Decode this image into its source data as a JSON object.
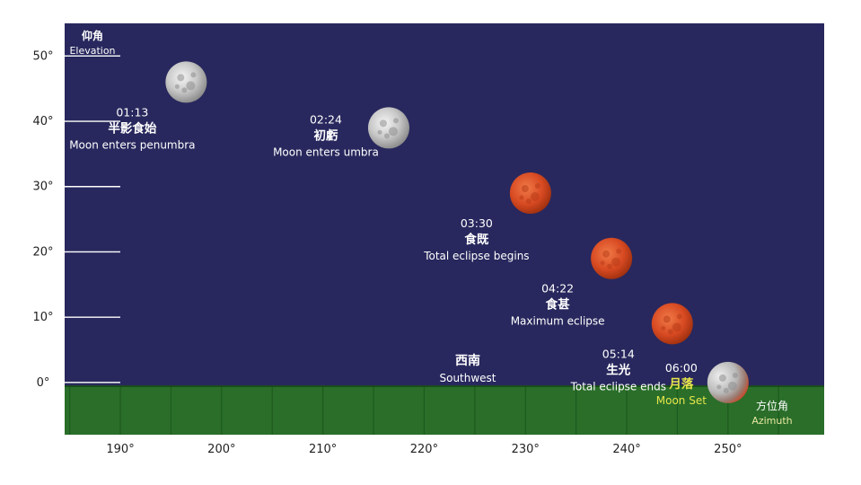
{
  "chart_data": {
    "type": "scatter",
    "title": "",
    "y_axis": {
      "label_cn": "仰角",
      "label_en": "Elevation",
      "ticks": [
        "0°",
        "10°",
        "20°",
        "30°",
        "40°",
        "50°"
      ],
      "tick_values": [
        0,
        10,
        20,
        30,
        40,
        50
      ],
      "ylim": [
        -8,
        55
      ]
    },
    "x_axis": {
      "label_cn": "方位角",
      "label_en": "Azimuth",
      "ticks": [
        "190°",
        "200°",
        "210°",
        "220°",
        "230°",
        "240°",
        "250°"
      ],
      "tick_values": [
        190,
        200,
        210,
        220,
        230,
        240,
        250
      ],
      "xlim": [
        184.5,
        259.5
      ]
    },
    "direction": {
      "cn": "西南",
      "en": "Southwest"
    },
    "colors": {
      "sky": "#28285e",
      "ground": "#2a6e2a",
      "ground_line": "#1e5a1e",
      "label_text": "#ffffff",
      "moonset_text": "#e6e64a",
      "moon_normal": "#c4c4c4",
      "moon_eclipsed": "#d84a22"
    },
    "points": [
      {
        "time": "01:13",
        "event_cn": "半影食始",
        "event_en": "Moon enters penumbra",
        "azimuth": 196.5,
        "elevation": 46,
        "phase": "normal"
      },
      {
        "time": "02:24",
        "event_cn": "初虧",
        "event_en": "Moon enters umbra",
        "azimuth": 216.5,
        "elevation": 39,
        "phase": "normal"
      },
      {
        "time": "03:30",
        "event_cn": "食既",
        "event_en": "Total eclipse begins",
        "azimuth": 230.5,
        "elevation": 29,
        "phase": "eclipsed"
      },
      {
        "time": "04:22",
        "event_cn": "食甚",
        "event_en": "Maximum eclipse",
        "azimuth": 238.5,
        "elevation": 19,
        "phase": "eclipsed"
      },
      {
        "time": "05:14",
        "event_cn": "生光",
        "event_en": "Total eclipse ends",
        "azimuth": 244.5,
        "elevation": 9,
        "phase": "eclipsed"
      },
      {
        "time": "06:00",
        "event_cn": "月落",
        "event_en": "Moon Set",
        "azimuth": 250,
        "elevation": 0,
        "phase": "setting"
      }
    ]
  }
}
